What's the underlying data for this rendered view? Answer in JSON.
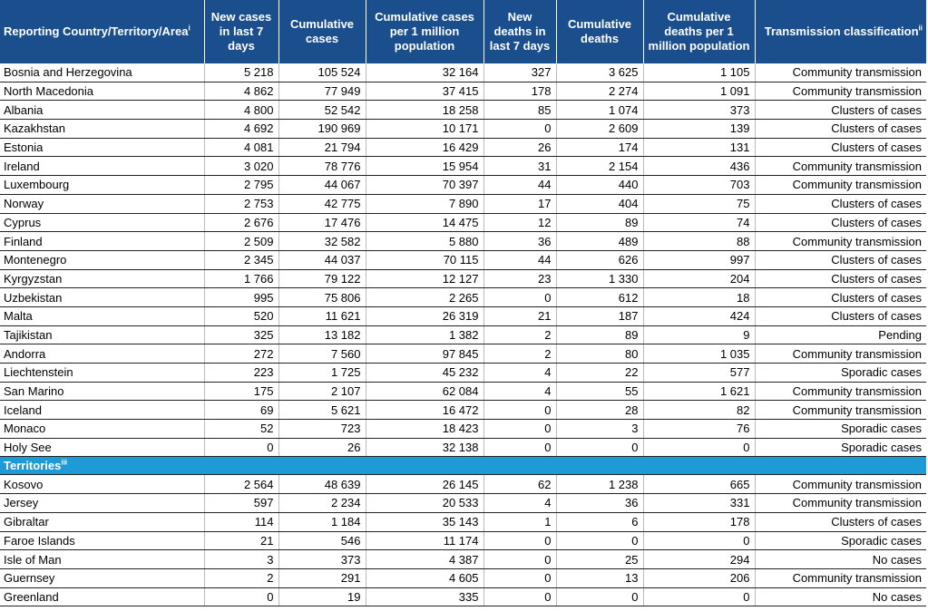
{
  "headers": [
    {
      "text": "Reporting Country/Territory/Area",
      "sup": "i"
    },
    {
      "text": "New cases in last 7 days",
      "sup": ""
    },
    {
      "text": "Cumulative cases",
      "sup": ""
    },
    {
      "text": "Cumulative cases per 1 million population",
      "sup": ""
    },
    {
      "text": "New deaths in last 7 days",
      "sup": ""
    },
    {
      "text": "Cumulative deaths",
      "sup": ""
    },
    {
      "text": "Cumulative deaths per 1 million population",
      "sup": ""
    },
    {
      "text": "Transmission classification",
      "sup": "ii"
    }
  ],
  "countries": [
    [
      "Bosnia and Herzegovina",
      "5 218",
      "105 524",
      "32 164",
      "327",
      "3 625",
      "1 105",
      "Community transmission"
    ],
    [
      "North Macedonia",
      "4 862",
      "77 949",
      "37 415",
      "178",
      "2 274",
      "1 091",
      "Community transmission"
    ],
    [
      "Albania",
      "4 800",
      "52 542",
      "18 258",
      "85",
      "1 074",
      "373",
      "Clusters of cases"
    ],
    [
      "Kazakhstan",
      "4 692",
      "190 969",
      "10 171",
      "0",
      "2 609",
      "139",
      "Clusters of cases"
    ],
    [
      "Estonia",
      "4 081",
      "21 794",
      "16 429",
      "26",
      "174",
      "131",
      "Clusters of cases"
    ],
    [
      "Ireland",
      "3 020",
      "78 776",
      "15 954",
      "31",
      "2 154",
      "436",
      "Community transmission"
    ],
    [
      "Luxembourg",
      "2 795",
      "44 067",
      "70 397",
      "44",
      "440",
      "703",
      "Community transmission"
    ],
    [
      "Norway",
      "2 753",
      "42 775",
      "7 890",
      "17",
      "404",
      "75",
      "Clusters of cases"
    ],
    [
      "Cyprus",
      "2 676",
      "17 476",
      "14 475",
      "12",
      "89",
      "74",
      "Clusters of cases"
    ],
    [
      "Finland",
      "2 509",
      "32 582",
      "5 880",
      "36",
      "489",
      "88",
      "Community transmission"
    ],
    [
      "Montenegro",
      "2 345",
      "44 037",
      "70 115",
      "44",
      "626",
      "997",
      "Clusters of cases"
    ],
    [
      "Kyrgyzstan",
      "1 766",
      "79 122",
      "12 127",
      "23",
      "1 330",
      "204",
      "Clusters of cases"
    ],
    [
      "Uzbekistan",
      "995",
      "75 806",
      "2 265",
      "0",
      "612",
      "18",
      "Clusters of cases"
    ],
    [
      "Malta",
      "520",
      "11 621",
      "26 319",
      "21",
      "187",
      "424",
      "Clusters of cases"
    ],
    [
      "Tajikistan",
      "325",
      "13 182",
      "1 382",
      "2",
      "89",
      "9",
      "Pending"
    ],
    [
      "Andorra",
      "272",
      "7 560",
      "97 845",
      "2",
      "80",
      "1 035",
      "Community transmission"
    ],
    [
      "Liechtenstein",
      "223",
      "1 725",
      "45 232",
      "4",
      "22",
      "577",
      "Sporadic cases"
    ],
    [
      "San Marino",
      "175",
      "2 107",
      "62 084",
      "4",
      "55",
      "1 621",
      "Community transmission"
    ],
    [
      "Iceland",
      "69",
      "5 621",
      "16 472",
      "0",
      "28",
      "82",
      "Community transmission"
    ],
    [
      "Monaco",
      "52",
      "723",
      "18 423",
      "0",
      "3",
      "76",
      "Sporadic cases"
    ],
    [
      "Holy See",
      "0",
      "26",
      "32 138",
      "0",
      "0",
      "0",
      "Sporadic cases"
    ]
  ],
  "territories_label": "Territories",
  "territories_sup": "iii",
  "territories": [
    [
      "Kosovo",
      "2 564",
      "48 639",
      "26 145",
      "62",
      "1 238",
      "665",
      "Community transmission"
    ],
    [
      "Jersey",
      "597",
      "2 234",
      "20 533",
      "4",
      "36",
      "331",
      "Community transmission"
    ],
    [
      "Gibraltar",
      "114",
      "1 184",
      "35 143",
      "1",
      "6",
      "178",
      "Clusters of cases"
    ],
    [
      "Faroe Islands",
      "21",
      "546",
      "11 174",
      "0",
      "0",
      "0",
      "Sporadic cases"
    ],
    [
      "Isle of Man",
      "3",
      "373",
      "4 387",
      "0",
      "25",
      "294",
      "No cases"
    ],
    [
      "Guernsey",
      "2",
      "291",
      "4 605",
      "0",
      "13",
      "206",
      "Community transmission"
    ],
    [
      "Greenland",
      "0",
      "19",
      "335",
      "0",
      "0",
      "0",
      "No cases"
    ]
  ]
}
